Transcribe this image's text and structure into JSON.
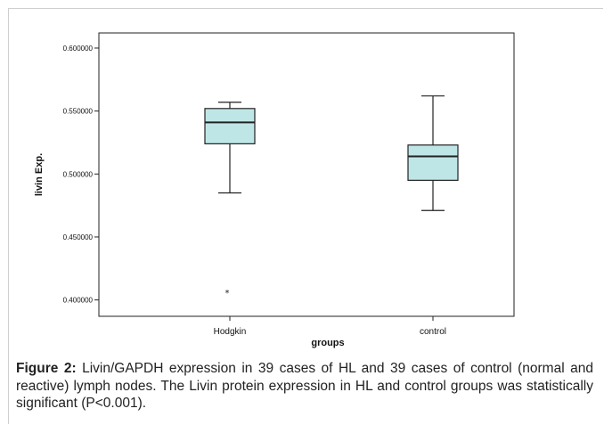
{
  "figure": {
    "caption_label": "Figure 2:",
    "caption_text": " Livin/GAPDH expression in 39 cases of HL and 39 cases of control (normal and reactive) lymph nodes. The Livin protein expression in HL and control groups was statistically significant (P<0.001)."
  },
  "chart_data": {
    "type": "boxplot",
    "xlabel": "groups",
    "ylabel": "livin Exp.",
    "ylim": [
      0.387,
      0.612
    ],
    "yticks": [
      0.4,
      0.45,
      0.5,
      0.55,
      0.6
    ],
    "ytick_labels": [
      "0.400000",
      "0.450000",
      "0.500000",
      "0.550000",
      "0.600000"
    ],
    "categories": [
      "Hodgkin",
      "control"
    ],
    "boxes": [
      {
        "name": "Hodgkin",
        "whisker_low": 0.485,
        "q1": 0.524,
        "median": 0.541,
        "q3": 0.552,
        "whisker_high": 0.557,
        "outliers": [
          0.406
        ]
      },
      {
        "name": "control",
        "whisker_low": 0.471,
        "q1": 0.495,
        "median": 0.514,
        "q3": 0.523,
        "whisker_high": 0.562,
        "outliers": []
      }
    ],
    "colors": {
      "box_fill": "#bfe6e6",
      "stroke": "#222222",
      "axis": "#222222"
    },
    "grid": false,
    "legend": false
  }
}
